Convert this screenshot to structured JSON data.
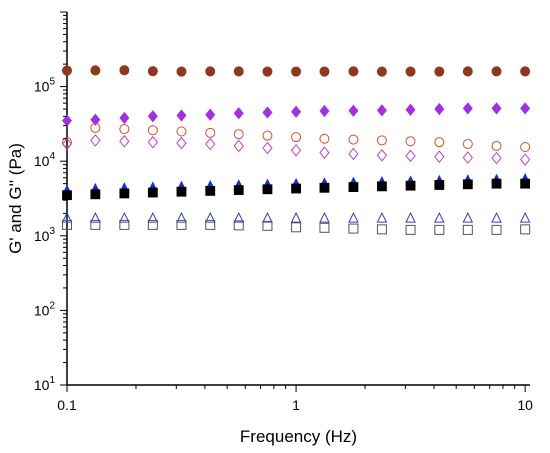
{
  "chart_data": {
    "type": "scatter",
    "title": "",
    "xlabel": "Frequency (Hz)",
    "ylabel": "G' and G'' (Pa)",
    "xscale": "log",
    "yscale": "log",
    "xlim": [
      0.1,
      10.5
    ],
    "ylim": [
      10,
      1000000
    ],
    "grid": false,
    "legend": "none",
    "x_ticks": [
      {
        "value": 0.1,
        "label": "0.1"
      },
      {
        "value": 1,
        "label": "1"
      },
      {
        "value": 10,
        "label": "10"
      }
    ],
    "y_ticks": [
      {
        "value": 10,
        "base": "10",
        "exp": "1"
      },
      {
        "value": 100,
        "base": "10",
        "exp": "2"
      },
      {
        "value": 1000,
        "base": "10",
        "exp": "3"
      },
      {
        "value": 10000,
        "base": "10",
        "exp": "4"
      },
      {
        "value": 100000,
        "base": "10",
        "exp": "5"
      }
    ],
    "x": [
      0.1,
      0.133,
      0.178,
      0.237,
      0.316,
      0.422,
      0.562,
      0.75,
      1.0,
      1.33,
      1.78,
      2.37,
      3.16,
      4.22,
      5.62,
      7.5,
      10.0
    ],
    "series": [
      {
        "marker": "circle-filled",
        "color": "#e0201c",
        "values": [
          165000,
          166000,
          167000,
          162000,
          160000,
          161000,
          161000,
          160000,
          160000,
          160000,
          161000,
          160000,
          160000,
          160000,
          161000,
          161000,
          161000
        ]
      },
      {
        "marker": "circle-filled",
        "color": "#8b3a1f",
        "values": [
          163000,
          164000,
          165000,
          160000,
          158000,
          159000,
          159000,
          158000,
          158000,
          158000,
          159000,
          158000,
          158000,
          158000,
          159000,
          159000,
          159000
        ]
      },
      {
        "marker": "diamond-filled",
        "color": "#a030e0",
        "values": [
          35000,
          36000,
          38000,
          40000,
          41000,
          42000,
          44000,
          45000,
          46000,
          47000,
          47500,
          48000,
          49000,
          50000,
          51000,
          51000,
          51000
        ]
      },
      {
        "marker": "circle-open",
        "color": "#d05030",
        "values": [
          18000,
          28000,
          27000,
          26000,
          25000,
          24000,
          23000,
          22000,
          21000,
          20000,
          19500,
          19000,
          18500,
          18000,
          17000,
          16000,
          15500
        ]
      },
      {
        "marker": "diamond-open",
        "color": "#c040d0",
        "values": [
          17000,
          19000,
          18500,
          18000,
          17500,
          17000,
          16000,
          15000,
          14000,
          13000,
          12500,
          12000,
          11800,
          11500,
          11200,
          11000,
          10500
        ]
      },
      {
        "marker": "triangle-filled",
        "color": "#1030d0",
        "values": [
          4000,
          4200,
          4300,
          4400,
          4500,
          4600,
          4700,
          4800,
          4900,
          5000,
          5100,
          5200,
          5300,
          5400,
          5500,
          5600,
          5700
        ]
      },
      {
        "marker": "square-filled",
        "color": "#000000",
        "values": [
          3500,
          3600,
          3700,
          3800,
          3900,
          4000,
          4100,
          4200,
          4300,
          4400,
          4500,
          4600,
          4700,
          4800,
          4900,
          5000,
          5000
        ]
      },
      {
        "marker": "triangle-open",
        "color": "#3040c0",
        "values": [
          1700,
          1700,
          1700,
          1700,
          1700,
          1700,
          1700,
          1700,
          1700,
          1700,
          1700,
          1700,
          1700,
          1700,
          1700,
          1700,
          1700
        ]
      },
      {
        "marker": "square-open",
        "color": "#555555",
        "values": [
          1400,
          1400,
          1400,
          1400,
          1400,
          1400,
          1380,
          1360,
          1300,
          1280,
          1250,
          1220,
          1200,
          1200,
          1200,
          1200,
          1220
        ]
      }
    ]
  }
}
